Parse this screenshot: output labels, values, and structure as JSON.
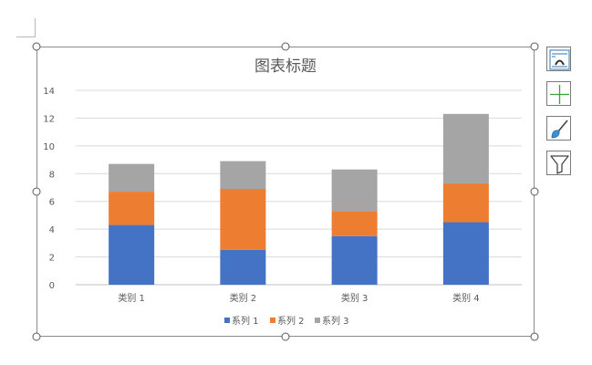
{
  "chart_data": {
    "type": "bar",
    "stacked": true,
    "title": "图表标题",
    "categories": [
      "类别 1",
      "类别 2",
      "类别 3",
      "类别 4"
    ],
    "series": [
      {
        "name": "系列 1",
        "values": [
          4.3,
          2.5,
          3.5,
          4.5
        ],
        "color": "#4472C4"
      },
      {
        "name": "系列 2",
        "values": [
          2.4,
          4.4,
          1.8,
          2.8
        ],
        "color": "#ED7D31"
      },
      {
        "name": "系列 3",
        "values": [
          2.0,
          2.0,
          3.0,
          5.0
        ],
        "color": "#A5A5A5"
      }
    ],
    "ylim": [
      0,
      14
    ],
    "yticks": [
      "0",
      "2",
      "4",
      "6",
      "8",
      "10",
      "12",
      "14"
    ],
    "grid": true,
    "legend": "bottom"
  },
  "side_tools": [
    {
      "name": "chart-elements-button",
      "icon": "chart-layout-icon"
    },
    {
      "name": "add-chart-element-button",
      "icon": "plus-icon"
    },
    {
      "name": "chart-styles-button",
      "icon": "brush-icon"
    },
    {
      "name": "chart-filters-button",
      "icon": "funnel-icon"
    }
  ]
}
